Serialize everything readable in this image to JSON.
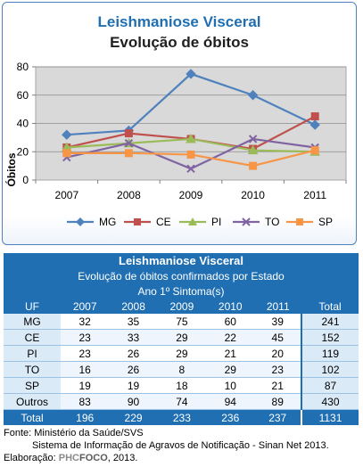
{
  "chart": {
    "title_line1": "Leishmaniose Visceral",
    "title_line2": "Evolução de óbitos"
  },
  "chart_data": {
    "type": "line",
    "title": "Leishmaniose Visceral — Evolução de óbitos",
    "xlabel": "",
    "ylabel": "Óbitos",
    "categories": [
      "2007",
      "2008",
      "2009",
      "2010",
      "2011"
    ],
    "ylim": [
      0,
      80
    ],
    "yticks": [
      0,
      20,
      40,
      60,
      80
    ],
    "grid": true,
    "legend_position": "bottom",
    "series": [
      {
        "name": "MG",
        "values": [
          32,
          35,
          75,
          60,
          39
        ],
        "color": "#4f81bd",
        "marker": "diamond"
      },
      {
        "name": "CE",
        "values": [
          23,
          33,
          29,
          22,
          45
        ],
        "color": "#c0504d",
        "marker": "square"
      },
      {
        "name": "PI",
        "values": [
          23,
          26,
          29,
          21,
          20
        ],
        "color": "#9bbb59",
        "marker": "triangle"
      },
      {
        "name": "TO",
        "values": [
          16,
          26,
          8,
          29,
          23
        ],
        "color": "#8064a2",
        "marker": "x"
      },
      {
        "name": "SP",
        "values": [
          19,
          19,
          18,
          10,
          21
        ],
        "color": "#f79646",
        "marker": "square"
      }
    ]
  },
  "table": {
    "title": "Leishmaniose Visceral",
    "subtitle": "Evolução de óbitos confirmados por Estado",
    "group_header": "Ano 1º Sintoma(s)",
    "col_uf": "UF",
    "years": [
      "2007",
      "2008",
      "2009",
      "2010",
      "2011"
    ],
    "col_total": "Total",
    "rows": [
      {
        "uf": "MG",
        "values": [
          "32",
          "35",
          "75",
          "60",
          "39"
        ],
        "total": "241"
      },
      {
        "uf": "CE",
        "values": [
          "23",
          "33",
          "29",
          "22",
          "45"
        ],
        "total": "152"
      },
      {
        "uf": "PI",
        "values": [
          "23",
          "26",
          "29",
          "21",
          "20"
        ],
        "total": "119"
      },
      {
        "uf": "TO",
        "values": [
          "16",
          "26",
          "8",
          "29",
          "23"
        ],
        "total": "102"
      },
      {
        "uf": "SP",
        "values": [
          "19",
          "19",
          "18",
          "10",
          "21"
        ],
        "total": "87"
      },
      {
        "uf": "Outros",
        "values": [
          "83",
          "90",
          "74",
          "94",
          "89"
        ],
        "total": "430"
      }
    ],
    "footer": {
      "label": "Total",
      "values": [
        "196",
        "229",
        "233",
        "236",
        "237"
      ],
      "total": "1131"
    }
  },
  "notes": {
    "line1": "Fonte: Ministério da Saúde/SVS",
    "line2": "Sistema de Informação de Agravos de Notificação - Sinan Net 2013.",
    "line3_prefix": "Elaboração: ",
    "brand_phc": "PHC",
    "brand_foco": "FOCO",
    "line3_suffix": ", 2013."
  }
}
